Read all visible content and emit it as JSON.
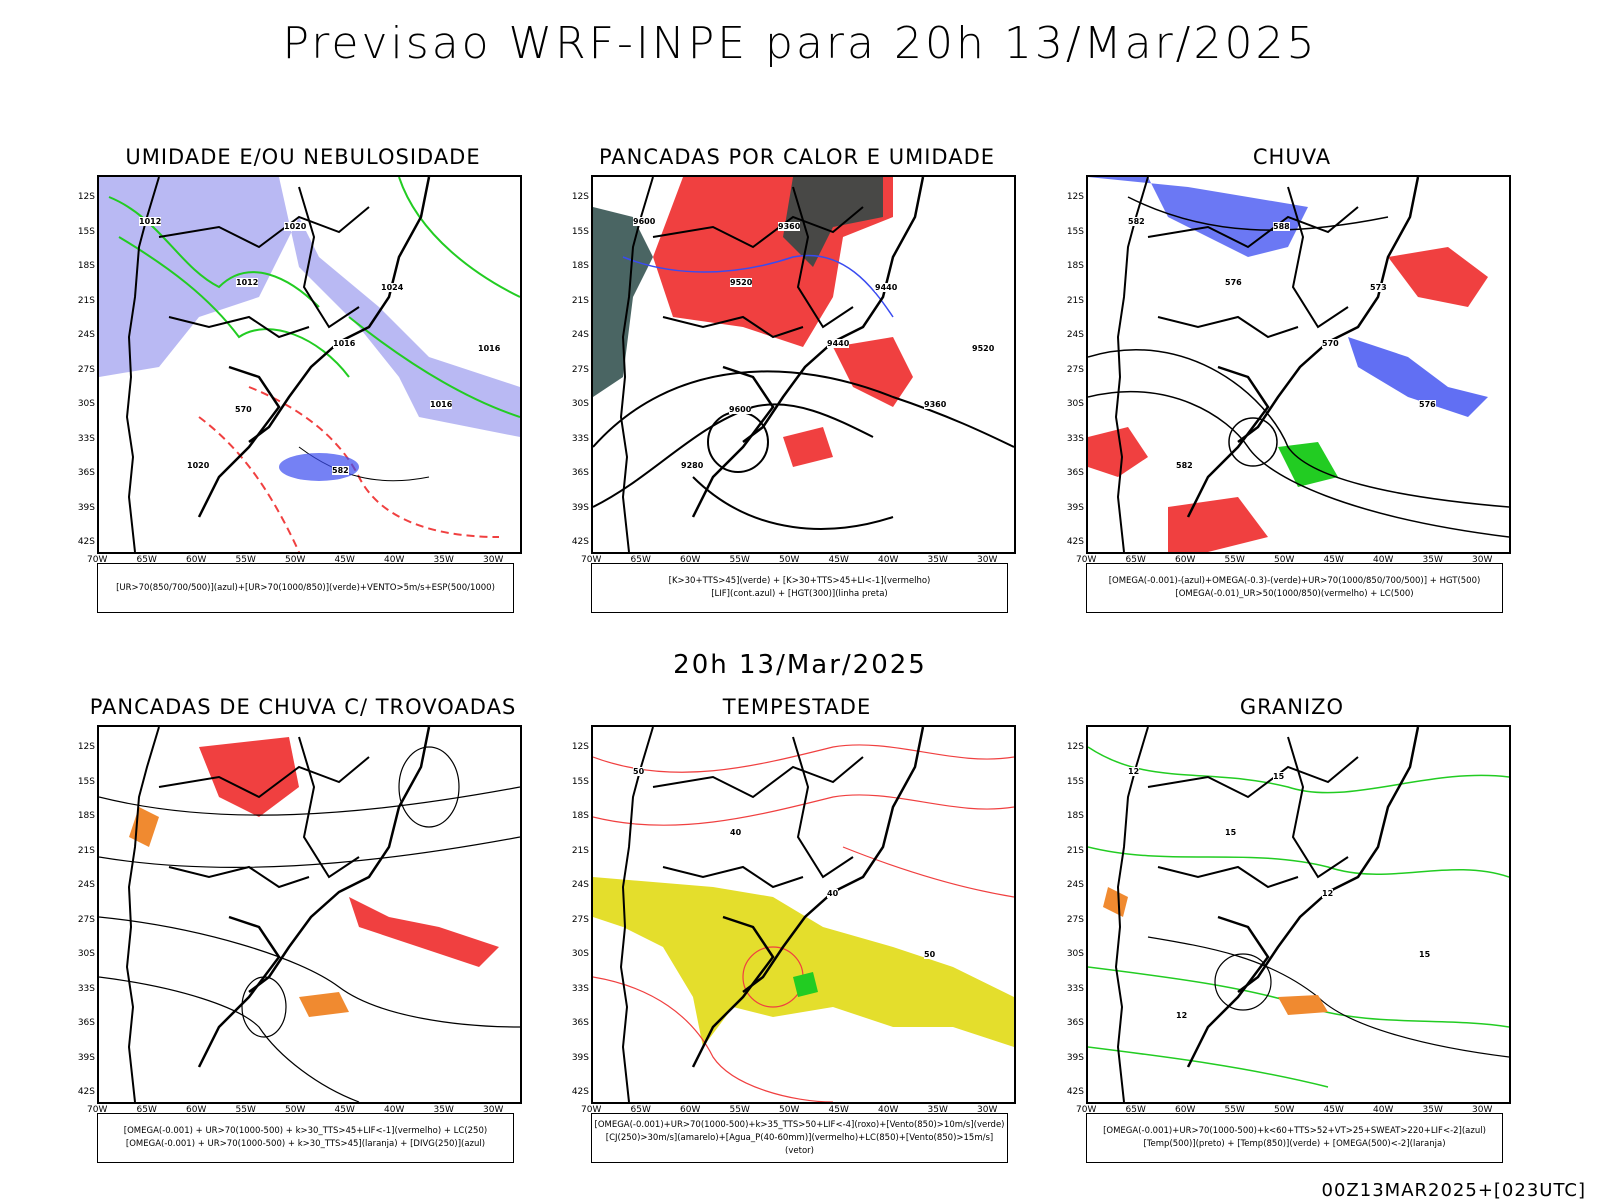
{
  "title": "Previsao WRF-INPE  para 20h 13/Mar/2025",
  "subtitle": "20h 13/Mar/2025",
  "footer": "00Z13MAR2025+[023UTC]",
  "axes": {
    "lat": [
      "12S",
      "15S",
      "18S",
      "21S",
      "24S",
      "27S",
      "30S",
      "33S",
      "36S",
      "39S",
      "42S"
    ],
    "lon": [
      "70W",
      "65W",
      "60W",
      "55W",
      "50W",
      "45W",
      "40W",
      "35W",
      "30W"
    ]
  },
  "colors": {
    "blue": "#3a4bf0",
    "lightblue": "#a8a8f0",
    "green": "#22cc22",
    "red": "#f04040",
    "darkteal": "#2a4a48",
    "yellow": "#e4de2c",
    "orange": "#f08a30",
    "black": "#000000"
  },
  "panels": [
    {
      "id": "umidade",
      "title": "UMIDADE E/OU NEBULOSIDADE",
      "legend": [
        "[UR>70(850/700/500)](azul)+[UR>70(1000/850)](verde)+VENTO>5m/s+ESP(500/1000)"
      ],
      "labels": [
        "1012",
        "1012",
        "1016",
        "1016",
        "1020",
        "1020",
        "1024",
        "1016",
        "570",
        "582"
      ]
    },
    {
      "id": "pancadas_calor",
      "title": "PANCADAS POR CALOR E UMIDADE",
      "legend": [
        "[K>30+TTS>45](verde) + [K>30+TTS>45+LI<-1](vermelho)",
        "[LIF](cont.azul) + [HGT(300)](linha preta)"
      ],
      "labels": [
        "9600",
        "9520",
        "9440",
        "9360",
        "9280",
        "9360",
        "9440",
        "9520",
        "9600"
      ]
    },
    {
      "id": "chuva",
      "title": "CHUVA",
      "legend": [
        "[OMEGA(-0.001)-(azul)+OMEGA(-0.3)-(verde)+UR>70(1000/850/700/500)] + HGT(500)",
        "[OMEGA(-0.01)_UR>50(1000/850)(vermelho) + LC(500)"
      ],
      "labels": [
        "582",
        "576",
        "570",
        "576",
        "582",
        "588",
        "573"
      ]
    },
    {
      "id": "trovoadas",
      "title": "PANCADAS DE CHUVA C/ TROVOADAS",
      "legend": [
        "[OMEGA(-0.001) + UR>70(1000-500) + k>30_TTS>45+LIF<-1](vermelho) + LC(250)",
        "[OMEGA(-0.001) + UR>70(1000-500) + k>30_TTS>45](laranja) + [DIVG(250)](azul)"
      ],
      "labels": []
    },
    {
      "id": "tempestade",
      "title": "TEMPESTADE",
      "legend": [
        "[OMEGA(-0.001)+UR>70(1000-500)+k>35_TTS>50+LIF<-4](roxo)+[Vento(850)>10m/s](verde)",
        "[CJ(250)>30m/s](amarelo)+[Agua_P(40-60mm)](vermelho)+LC(850)+[Vento(850)>15m/s](vetor)"
      ],
      "labels": [
        "50",
        "40",
        "40",
        "50"
      ]
    },
    {
      "id": "granizo",
      "title": "GRANIZO",
      "legend": [
        "[OMEGA(-0.001)+UR>70(1000-500)+k<60+TTS>52+VT>25+SWEAT>220+LIF<-2](azul)",
        "[Temp(500)](preto) + [Temp(850)](verde) + [OMEGA(500)<-2](laranja)"
      ],
      "labels": [
        "12",
        "15",
        "12",
        "15",
        "12",
        "15"
      ]
    }
  ]
}
